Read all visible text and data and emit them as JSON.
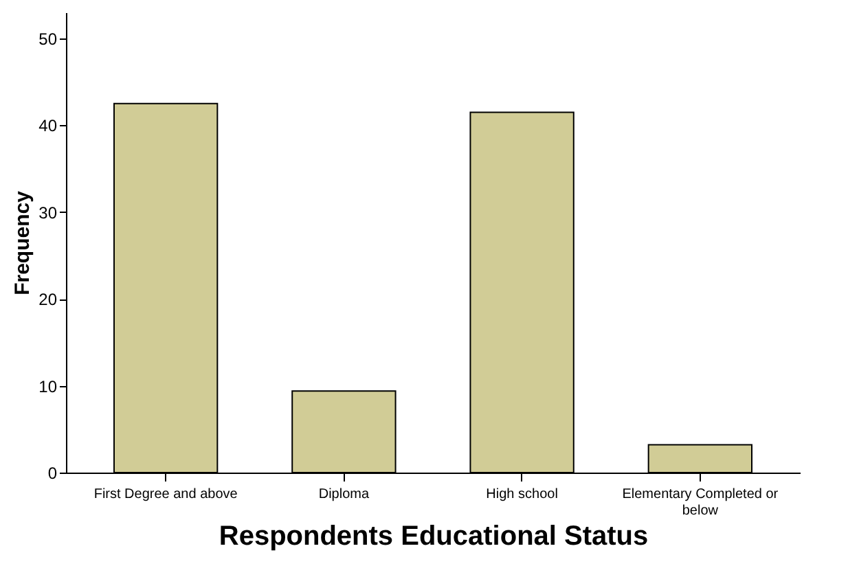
{
  "chart_data": {
    "type": "bar",
    "categories": [
      "First Degree and above",
      "Diploma",
      "High school",
      "Elementary Completed or below"
    ],
    "values": [
      42.5,
      9.4,
      41.5,
      3.2
    ],
    "color": "#d1cc96",
    "xlabel": "Respondents Educational Status",
    "ylabel": "Frequency",
    "ylim": [
      0,
      53
    ],
    "yticks": [
      0,
      10,
      20,
      30,
      40,
      50
    ],
    "grid": false
  }
}
